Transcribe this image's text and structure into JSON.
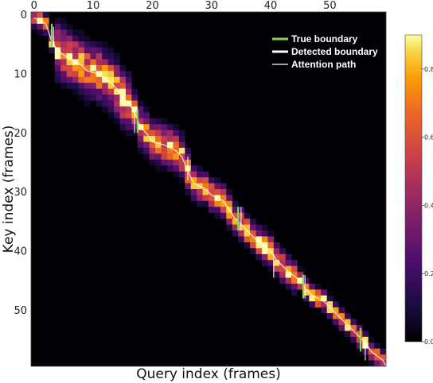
{
  "chart_data": {
    "type": "heatmap",
    "title": "",
    "xlabel": "Query index (frames)",
    "ylabel": "Key index (frames)",
    "xlim": [
      -0.5,
      59.5
    ],
    "ylim": [
      59.5,
      -0.5
    ],
    "x_ticks": [
      0,
      10,
      20,
      30,
      40,
      50
    ],
    "y_ticks": [
      0,
      10,
      20,
      30,
      40,
      50
    ],
    "colormap": "inferno",
    "colorbar": {
      "range": [
        0.0,
        0.9
      ],
      "ticks": [
        "0.0",
        "0.2",
        "0.4",
        "0.6",
        "0.8"
      ],
      "tick_values": [
        0.0,
        0.2,
        0.4,
        0.6,
        0.8
      ]
    },
    "legend": {
      "placement": "top-right",
      "entries": [
        {
          "label": "True boundary",
          "color": "#7ed957"
        },
        {
          "label": "Detected boundary",
          "color": "#ffffff"
        },
        {
          "label": "Attention path",
          "color": "#ffffff"
        }
      ]
    },
    "attention_path": [
      [
        0,
        0.5
      ],
      [
        2,
        1.5
      ],
      [
        3,
        4.5
      ],
      [
        4,
        6
      ],
      [
        6,
        7.5
      ],
      [
        8,
        8.5
      ],
      [
        9,
        9.5
      ],
      [
        11,
        10
      ],
      [
        13,
        11.5
      ],
      [
        14,
        12.5
      ],
      [
        15,
        14
      ],
      [
        16,
        15
      ],
      [
        17,
        16.5
      ],
      [
        18,
        19
      ],
      [
        19,
        20
      ],
      [
        20,
        21.5
      ],
      [
        22,
        22
      ],
      [
        24,
        23
      ],
      [
        25,
        24
      ],
      [
        26,
        26.5
      ],
      [
        27,
        28.5
      ],
      [
        29,
        29.5
      ],
      [
        30,
        30.5
      ],
      [
        32,
        31.5
      ],
      [
        33,
        33
      ],
      [
        34,
        34.5
      ],
      [
        35,
        35.5
      ],
      [
        36,
        36.5
      ],
      [
        38,
        38.5
      ],
      [
        40,
        40
      ],
      [
        41,
        41.5
      ],
      [
        42,
        42.5
      ],
      [
        43,
        43.5
      ],
      [
        45,
        45
      ],
      [
        46,
        46.5
      ],
      [
        47,
        47.5
      ],
      [
        49,
        48.5
      ],
      [
        51,
        50.5
      ],
      [
        53,
        52.5
      ],
      [
        55,
        54.5
      ],
      [
        56,
        55.5
      ],
      [
        57,
        57
      ],
      [
        59,
        58.5
      ],
      [
        59.5,
        59.5
      ]
    ],
    "true_boundaries": [
      {
        "x": 3,
        "y0": 1.5,
        "y1": 5.5
      },
      {
        "x": 17.5,
        "y0": 16,
        "y1": 20
      },
      {
        "x": 34.5,
        "y0": 32.5,
        "y1": 36.5
      },
      {
        "x": 45.5,
        "y0": 44,
        "y1": 48
      },
      {
        "x": 55.2,
        "y0": 53,
        "y1": 57
      }
    ],
    "detected_boundaries": [
      {
        "x": 3.3,
        "y0": 2,
        "y1": 5.5
      },
      {
        "x": 17,
        "y0": 16.5,
        "y1": 20
      },
      {
        "x": 26,
        "y0": 24,
        "y1": 28
      },
      {
        "x": 35,
        "y0": 32.5,
        "y1": 36.5
      },
      {
        "x": 40.5,
        "y0": 40.5,
        "y1": 44.5
      },
      {
        "x": 45.8,
        "y0": 44,
        "y1": 48
      },
      {
        "x": 56,
        "y0": 55,
        "y1": 58.5
      }
    ]
  }
}
